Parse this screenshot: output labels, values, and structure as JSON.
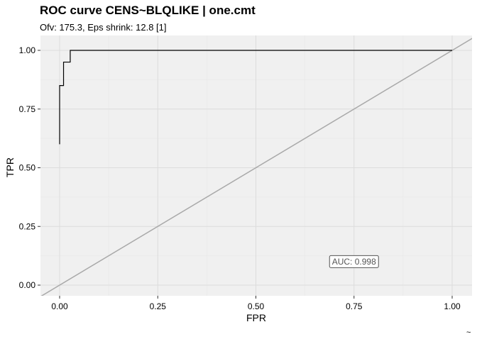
{
  "chart_data": {
    "type": "line",
    "title": "ROC curve CENS~BLQLIKE | one.cmt",
    "subtitle": "Ofv: 175.3, Eps shrink: 12.8 [1]",
    "xlabel": "FPR",
    "ylabel": "TPR",
    "xlim": [
      -0.05,
      1.05
    ],
    "ylim": [
      -0.05,
      1.05
    ],
    "x_ticks": [
      "0.00",
      "0.25",
      "0.50",
      "0.75",
      "1.00"
    ],
    "y_ticks": [
      "0.00",
      "0.25",
      "0.50",
      "0.75",
      "1.00"
    ],
    "grid": true,
    "series": [
      {
        "x": [
          0,
          0,
          0.01,
          0.01,
          0.027,
          0.027,
          1
        ],
        "y": [
          0.6,
          0.85,
          0.85,
          0.95,
          0.95,
          1,
          1
        ],
        "color": "#000000"
      }
    ],
    "reference_line": {
      "slope": 1,
      "intercept": 0,
      "color": "#a9a9a9"
    },
    "annotation": {
      "text": "AUC: 0.998",
      "x": 0.75,
      "y": 0.1
    },
    "caption": "~"
  }
}
